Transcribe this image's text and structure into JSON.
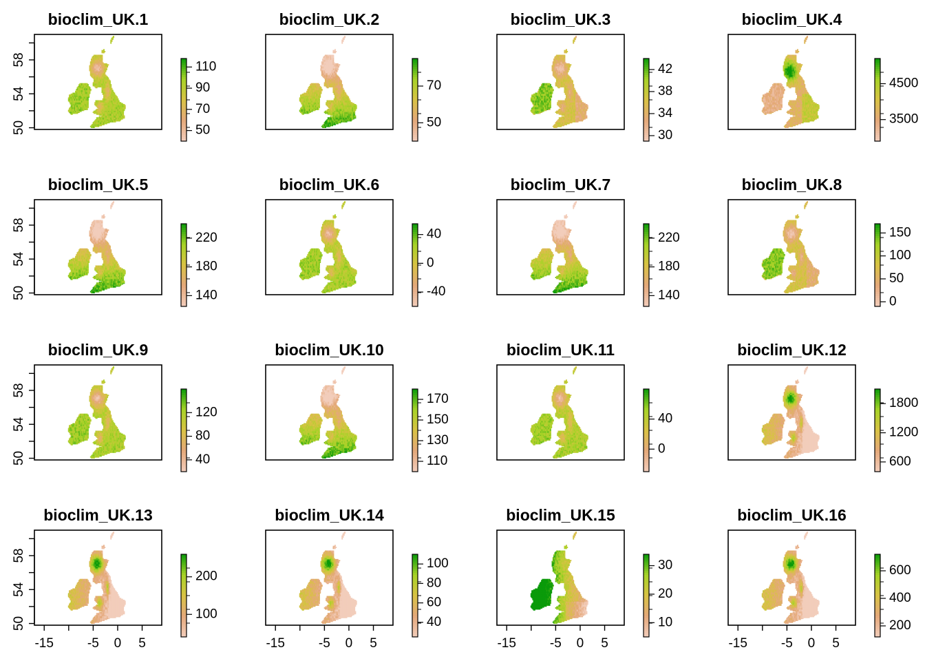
{
  "figure": {
    "axis": {
      "x_ticks": [
        -15,
        -10,
        -5,
        0,
        5
      ],
      "x_tick_labels": [
        "-15",
        "",
        "-5",
        "0",
        "5"
      ],
      "y_ticks": [
        50,
        52,
        54,
        56,
        58,
        60
      ],
      "y_tick_labels": [
        "50",
        "",
        "54",
        "",
        "58",
        ""
      ],
      "x_range": [
        -17,
        9
      ],
      "y_range": [
        49.8,
        61
      ]
    },
    "colors": {
      "low": "#f2cdbb",
      "mid1": "#e4a87a",
      "mid2": "#d8c244",
      "mid3": "#a6d327",
      "high": "#0a9a0a"
    },
    "panels": [
      {
        "title": "bioclim_UK.1",
        "ramp": [
          40,
          118
        ],
        "ticks": [
          {
            "v": 110,
            "label": "110"
          },
          {
            "v": 90,
            "label": "90"
          },
          {
            "v": 70,
            "label": "70"
          },
          {
            "v": 50,
            "label": "50"
          }
        ],
        "style": "mixed"
      },
      {
        "title": "bioclim_UK.2",
        "ramp": [
          40,
          85
        ],
        "ticks": [
          {
            "v": 70,
            "label": "70"
          },
          {
            "v": 50,
            "label": "50"
          }
        ],
        "style": "greenSouth"
      },
      {
        "title": "bioclim_UK.3",
        "ramp": [
          29,
          44
        ],
        "ticks": [
          {
            "v": 42,
            "label": "42"
          },
          {
            "v": 38,
            "label": "38"
          },
          {
            "v": 34,
            "label": "34"
          },
          {
            "v": 30,
            "label": "30"
          }
        ],
        "style": "pinkish"
      },
      {
        "title": "bioclim_UK.4",
        "ramp": [
          2900,
          5200
        ],
        "ticks": [
          {
            "v": 4500,
            "label": "4500"
          },
          {
            "v": 3500,
            "label": "3500"
          }
        ],
        "style": "greenNorth"
      },
      {
        "title": "bioclim_UK.5",
        "ramp": [
          125,
          240
        ],
        "ticks": [
          {
            "v": 220,
            "label": "220"
          },
          {
            "v": 180,
            "label": "180"
          },
          {
            "v": 140,
            "label": "140"
          }
        ],
        "style": "greenSouth"
      },
      {
        "title": "bioclim_UK.6",
        "ramp": [
          -60,
          55
        ],
        "ticks": [
          {
            "v": 40,
            "label": "40"
          },
          {
            "v": 0,
            "label": "0"
          },
          {
            "v": -40,
            "label": "-40"
          }
        ],
        "style": "mixed"
      },
      {
        "title": "bioclim_UK.7",
        "ramp": [
          125,
          240
        ],
        "ticks": [
          {
            "v": 220,
            "label": "220"
          },
          {
            "v": 180,
            "label": "180"
          },
          {
            "v": 140,
            "label": "140"
          }
        ],
        "style": "greenSouth"
      },
      {
        "title": "bioclim_UK.8",
        "ramp": [
          -10,
          170
        ],
        "ticks": [
          {
            "v": 150,
            "label": "150"
          },
          {
            "v": 100,
            "label": "100"
          },
          {
            "v": 50,
            "label": "50"
          },
          {
            "v": 0,
            "label": "0"
          }
        ],
        "style": "pinkish"
      },
      {
        "title": "bioclim_UK.9",
        "ramp": [
          20,
          160
        ],
        "ticks": [
          {
            "v": 120,
            "label": "120"
          },
          {
            "v": 80,
            "label": "80"
          },
          {
            "v": 40,
            "label": "40"
          }
        ],
        "style": "mixed"
      },
      {
        "title": "bioclim_UK.10",
        "ramp": [
          100,
          180
        ],
        "ticks": [
          {
            "v": 170,
            "label": "170"
          },
          {
            "v": 150,
            "label": "150"
          },
          {
            "v": 130,
            "label": "130"
          },
          {
            "v": 110,
            "label": "110"
          }
        ],
        "style": "greenSouth"
      },
      {
        "title": "bioclim_UK.11",
        "ramp": [
          -30,
          80
        ],
        "ticks": [
          {
            "v": 40,
            "label": "40"
          },
          {
            "v": 0,
            "label": "0"
          }
        ],
        "style": "mixed"
      },
      {
        "title": "bioclim_UK.12",
        "ramp": [
          400,
          2100
        ],
        "ticks": [
          {
            "v": 1800,
            "label": "1800"
          },
          {
            "v": 1200,
            "label": "1200"
          },
          {
            "v": 600,
            "label": "600"
          }
        ],
        "style": "wetWest"
      },
      {
        "title": "bioclim_UK.13",
        "ramp": [
          40,
          260
        ],
        "ticks": [
          {
            "v": 200,
            "label": "200"
          },
          {
            "v": 100,
            "label": "100"
          }
        ],
        "style": "wetWest"
      },
      {
        "title": "bioclim_UK.14",
        "ramp": [
          25,
          110
        ],
        "ticks": [
          {
            "v": 100,
            "label": "100"
          },
          {
            "v": 80,
            "label": "80"
          },
          {
            "v": 60,
            "label": "60"
          },
          {
            "v": 40,
            "label": "40"
          }
        ],
        "style": "wetWest"
      },
      {
        "title": "bioclim_UK.15",
        "ramp": [
          5,
          34
        ],
        "ticks": [
          {
            "v": 30,
            "label": "30"
          },
          {
            "v": 20,
            "label": "20"
          },
          {
            "v": 10,
            "label": "10"
          }
        ],
        "style": "seasonal"
      },
      {
        "title": "bioclim_UK.16",
        "ramp": [
          120,
          720
        ],
        "ticks": [
          {
            "v": 600,
            "label": "600"
          },
          {
            "v": 400,
            "label": "400"
          },
          {
            "v": 200,
            "label": "200"
          }
        ],
        "style": "wetWest"
      }
    ]
  }
}
